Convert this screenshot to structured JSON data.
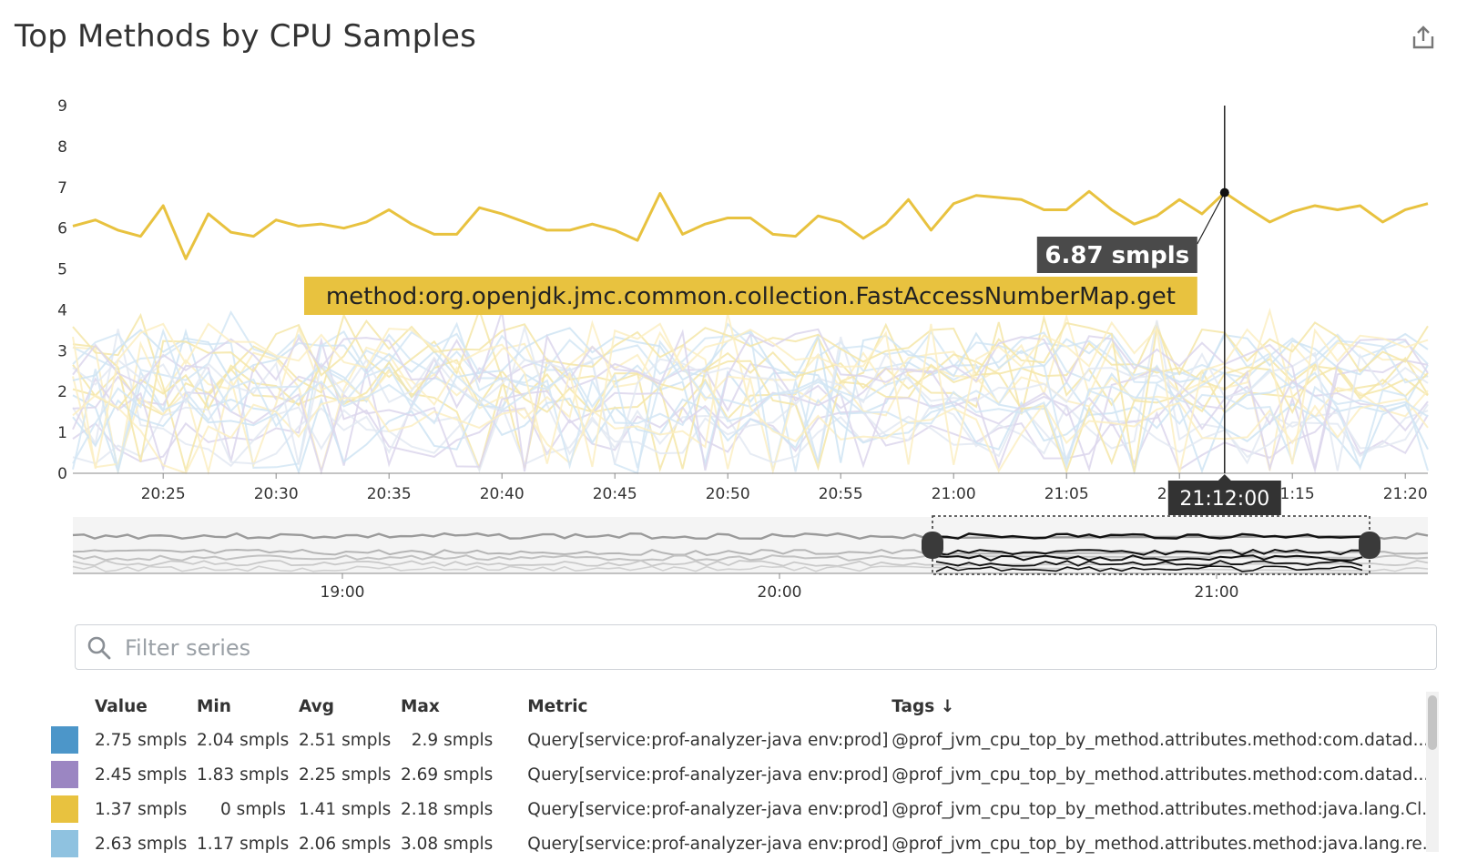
{
  "widget": {
    "title": "Top Methods by CPU Samples",
    "share_icon": "share-icon"
  },
  "chart_data": {
    "type": "line",
    "title": "Top Methods by CPU Samples",
    "ylim": [
      0,
      9
    ],
    "y_ticks": [
      "0",
      "1",
      "2",
      "3",
      "4",
      "5",
      "6",
      "7",
      "8",
      "9"
    ],
    "x_ticks": [
      "20:25",
      "20:30",
      "20:35",
      "20:40",
      "20:45",
      "20:50",
      "20:55",
      "21:00",
      "21:05",
      "21:10",
      "21:15",
      "21:20"
    ],
    "x_range_minutes": [
      1221,
      1281
    ],
    "highlight_series": {
      "name": "method:org.openjdk.jmc.common.collection.FastAccessNumberMap.get",
      "color": "#e8c23f",
      "values": [
        6.05,
        6.2,
        5.95,
        5.8,
        6.55,
        5.25,
        6.35,
        5.9,
        5.8,
        6.2,
        6.05,
        6.1,
        6.0,
        6.15,
        6.45,
        6.1,
        5.85,
        5.85,
        6.5,
        6.35,
        6.15,
        5.95,
        5.95,
        6.1,
        5.95,
        5.7,
        6.85,
        5.85,
        6.1,
        6.25,
        6.25,
        5.85,
        5.8,
        6.3,
        6.15,
        5.75,
        6.1,
        6.7,
        5.95,
        6.6,
        6.8,
        6.75,
        6.7,
        6.45,
        6.45,
        6.9,
        6.45,
        6.1,
        6.3,
        6.7,
        6.35,
        6.87,
        6.5,
        6.15,
        6.4,
        6.55,
        6.45,
        6.55,
        6.15,
        6.45,
        6.6
      ]
    },
    "hover": {
      "time": "21:12:00",
      "value": 6.87,
      "value_label": "6.87 smpls",
      "series_label": "method:org.openjdk.jmc.common.collection.FastAccessNumberMap.get"
    },
    "faded_series_colors": [
      "#f5e6a8",
      "#dcd6ec",
      "#d4e6f5",
      "#fbeec3",
      "#e3e9f2",
      "#cfe4f3"
    ]
  },
  "navigator": {
    "x_ticks": [
      "19:00",
      "20:00",
      "21:00"
    ],
    "range_minutes": [
      1103,
      1289
    ],
    "selection_minutes": [
      1221,
      1281
    ]
  },
  "filter": {
    "placeholder": "Filter series",
    "icon": "search-icon"
  },
  "legend": {
    "headers": {
      "value": "Value",
      "min": "Min",
      "avg": "Avg",
      "max": "Max",
      "metric": "Metric",
      "tags": "Tags ↓"
    },
    "rows": [
      {
        "color": "#4c96c9",
        "value": "2.75 smpls",
        "min": "2.04 smpls",
        "avg": "2.51 smpls",
        "max": "2.9 smpls",
        "metric": "Query[service:prof-analyzer-java env:prod]",
        "tags": "@prof_jvm_cpu_top_by_method.attributes.method:com.datad..."
      },
      {
        "color": "#9b86c2",
        "value": "2.45 smpls",
        "min": "1.83 smpls",
        "avg": "2.25 smpls",
        "max": "2.69 smpls",
        "metric": "Query[service:prof-analyzer-java env:prod]",
        "tags": "@prof_jvm_cpu_top_by_method.attributes.method:com.datad..."
      },
      {
        "color": "#e8c23f",
        "value": "1.37 smpls",
        "min": "0 smpls",
        "avg": "1.41 smpls",
        "max": "2.18 smpls",
        "metric": "Query[service:prof-analyzer-java env:prod]",
        "tags": "@prof_jvm_cpu_top_by_method.attributes.method:java.lang.Cl..."
      },
      {
        "color": "#8fc2e0",
        "value": "2.63 smpls",
        "min": "1.17 smpls",
        "avg": "2.06 smpls",
        "max": "3.08 smpls",
        "metric": "Query[service:prof-analyzer-java env:prod]",
        "tags": "@prof_jvm_cpu_top_by_method.attributes.method:java.lang.re..."
      }
    ]
  }
}
